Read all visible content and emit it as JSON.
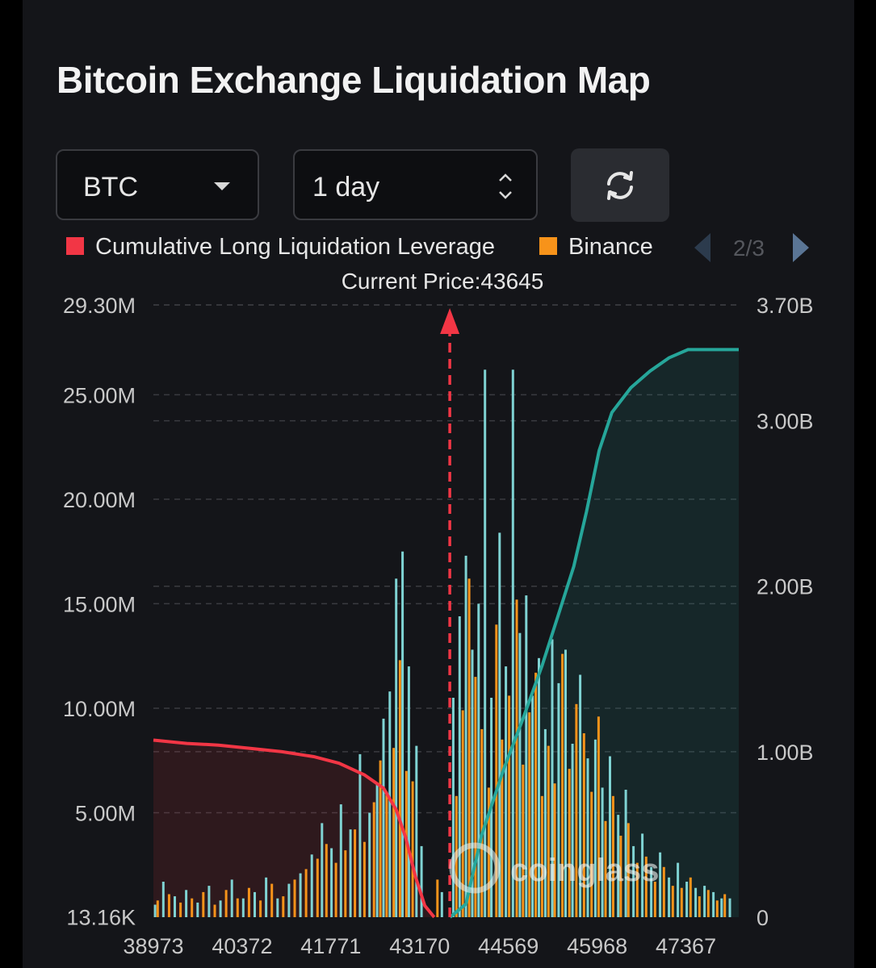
{
  "header": {
    "title": "Bitcoin Exchange Liquidation Map"
  },
  "controls": {
    "coin": "BTC",
    "timeframe": "1 day",
    "refresh_icon": "refresh-icon"
  },
  "legend": {
    "items": [
      {
        "label": "Cumulative Long Liquidation Leverage",
        "color": "#f23645"
      },
      {
        "label": "Binance",
        "color": "#f7931a"
      }
    ],
    "page": "2/3"
  },
  "colors": {
    "background": "#141519",
    "long_line": "#f23645",
    "short_line": "#26a69a",
    "binance_bar": "#f7931a",
    "other_bar": "#7fd3d3",
    "current_price_marker": "#f23645"
  },
  "chart_data": {
    "type": "bar",
    "current_price_label": "Current Price:43645",
    "current_price": 43645,
    "x_tick_labels": [
      "38973",
      "40372",
      "41771",
      "43170",
      "44569",
      "45968",
      "47367"
    ],
    "xlim": [
      38973,
      48200
    ],
    "y_left_tick_labels": [
      "29.30M",
      "25.00M",
      "20.00M",
      "15.00M",
      "10.00M",
      "5.00M",
      "13.16K"
    ],
    "y_left_ticks": [
      29.3,
      25,
      20,
      15,
      10,
      5,
      0.01316
    ],
    "y_left_unit": "M",
    "ylim_left": [
      0,
      29.3
    ],
    "y_right_tick_labels": [
      "3.70B",
      "3.00B",
      "2.00B",
      "1.00B",
      "0"
    ],
    "y_right_ticks": [
      3.7,
      3.0,
      2.0,
      1.0,
      0
    ],
    "y_right_unit": "B",
    "ylim_right": [
      0,
      3.7
    ],
    "grid": true,
    "legend_position": "top",
    "series": [
      {
        "name": "Cumulative Long Liquidation Leverage",
        "type": "area-line",
        "axis": "right",
        "points": [
          [
            38973,
            1.07
          ],
          [
            39500,
            1.05
          ],
          [
            40000,
            1.04
          ],
          [
            40500,
            1.02
          ],
          [
            41000,
            1.0
          ],
          [
            41500,
            0.97
          ],
          [
            41900,
            0.93
          ],
          [
            42300,
            0.86
          ],
          [
            42600,
            0.78
          ],
          [
            42800,
            0.65
          ],
          [
            42950,
            0.48
          ],
          [
            43100,
            0.25
          ],
          [
            43250,
            0.07
          ],
          [
            43400,
            0.0
          ]
        ]
      },
      {
        "name": "",
        "type": "area-line",
        "axis": "right",
        "points": [
          [
            43650,
            0.0
          ],
          [
            43900,
            0.08
          ],
          [
            44150,
            0.5
          ],
          [
            44500,
            0.9
          ],
          [
            44800,
            1.2
          ],
          [
            45100,
            1.52
          ],
          [
            45350,
            1.82
          ],
          [
            45600,
            2.12
          ],
          [
            45800,
            2.45
          ],
          [
            46000,
            2.82
          ],
          [
            46200,
            3.05
          ],
          [
            46500,
            3.2
          ],
          [
            46800,
            3.3
          ],
          [
            47100,
            3.38
          ],
          [
            47400,
            3.43
          ],
          [
            47500,
            3.43
          ]
        ]
      },
      {
        "name": "Binance",
        "type": "bar",
        "axis": "left",
        "points": [
          [
            39040,
            0.8
          ],
          [
            39220,
            1.1
          ],
          [
            39400,
            0.7
          ],
          [
            39580,
            0.9
          ],
          [
            39760,
            1.2
          ],
          [
            39940,
            0.6
          ],
          [
            40120,
            1.3
          ],
          [
            40300,
            0.9
          ],
          [
            40480,
            1.4
          ],
          [
            40660,
            0.8
          ],
          [
            40840,
            1.6
          ],
          [
            41020,
            1.0
          ],
          [
            41200,
            1.8
          ],
          [
            41380,
            2.3
          ],
          [
            41560,
            2.8
          ],
          [
            41700,
            3.5
          ],
          [
            41850,
            2.6
          ],
          [
            42000,
            3.2
          ],
          [
            42150,
            4.2
          ],
          [
            42300,
            3.6
          ],
          [
            42450,
            5.5
          ],
          [
            42550,
            7.5
          ],
          [
            42650,
            6.0
          ],
          [
            42760,
            8.1
          ],
          [
            42860,
            12.3
          ],
          [
            42960,
            7.0
          ],
          [
            43060,
            6.5
          ],
          [
            43450,
            1.8
          ],
          [
            43750,
            5.8
          ],
          [
            43850,
            9.9
          ],
          [
            43950,
            16.2
          ],
          [
            44050,
            11.5
          ],
          [
            44150,
            9.0
          ],
          [
            44260,
            6.2
          ],
          [
            44380,
            14.0
          ],
          [
            44470,
            8.5
          ],
          [
            44580,
            10.6
          ],
          [
            44700,
            15.2
          ],
          [
            44800,
            7.3
          ],
          [
            44900,
            9.8
          ],
          [
            45000,
            11.7
          ],
          [
            45100,
            5.8
          ],
          [
            45200,
            8.2
          ],
          [
            45300,
            6.4
          ],
          [
            45420,
            12.6
          ],
          [
            45530,
            7.1
          ],
          [
            45640,
            10.2
          ],
          [
            45760,
            8.8
          ],
          [
            45880,
            6.0
          ],
          [
            45990,
            9.6
          ],
          [
            46100,
            4.6
          ],
          [
            46220,
            5.8
          ],
          [
            46340,
            3.9
          ],
          [
            46460,
            4.5
          ],
          [
            46600,
            2.6
          ],
          [
            46740,
            2.9
          ],
          [
            46880,
            1.7
          ],
          [
            47020,
            2.4
          ],
          [
            47160,
            1.5
          ],
          [
            47300,
            1.4
          ],
          [
            47440,
            1.9
          ],
          [
            47580,
            1.0
          ],
          [
            47720,
            1.3
          ],
          [
            47860,
            0.8
          ],
          [
            47980,
            1.1
          ]
        ]
      },
      {
        "name": "",
        "type": "bar",
        "axis": "left",
        "points": [
          [
            39000,
            0.6
          ],
          [
            39130,
            1.7
          ],
          [
            39310,
            1.0
          ],
          [
            39490,
            1.3
          ],
          [
            39670,
            0.7
          ],
          [
            39850,
            1.5
          ],
          [
            40030,
            0.8
          ],
          [
            40210,
            1.8
          ],
          [
            40390,
            0.9
          ],
          [
            40570,
            1.2
          ],
          [
            40750,
            1.9
          ],
          [
            40930,
            0.9
          ],
          [
            41110,
            1.6
          ],
          [
            41290,
            2.1
          ],
          [
            41470,
            3.0
          ],
          [
            41630,
            4.5
          ],
          [
            41780,
            3.3
          ],
          [
            41930,
            5.4
          ],
          [
            42080,
            4.2
          ],
          [
            42230,
            7.8
          ],
          [
            42380,
            5.0
          ],
          [
            42500,
            6.4
          ],
          [
            42600,
            9.5
          ],
          [
            42700,
            10.8
          ],
          [
            42800,
            16.2
          ],
          [
            42900,
            17.5
          ],
          [
            43000,
            12.0
          ],
          [
            43120,
            8.2
          ],
          [
            43200,
            3.4
          ],
          [
            43520,
            1.2
          ],
          [
            43700,
            10.5
          ],
          [
            43800,
            14.4
          ],
          [
            43900,
            17.3
          ],
          [
            44000,
            12.8
          ],
          [
            44100,
            15.0
          ],
          [
            44200,
            26.2
          ],
          [
            44300,
            10.5
          ],
          [
            44430,
            18.4
          ],
          [
            44530,
            12.0
          ],
          [
            44640,
            26.2
          ],
          [
            44750,
            13.6
          ],
          [
            44850,
            15.4
          ],
          [
            44950,
            10.6
          ],
          [
            45050,
            12.4
          ],
          [
            45150,
            9.0
          ],
          [
            45260,
            13.3
          ],
          [
            45360,
            11.2
          ],
          [
            45470,
            12.8
          ],
          [
            45580,
            8.3
          ],
          [
            45700,
            11.6
          ],
          [
            45820,
            7.6
          ],
          [
            45940,
            8.5
          ],
          [
            46050,
            6.2
          ],
          [
            46170,
            7.7
          ],
          [
            46300,
            4.9
          ],
          [
            46420,
            6.1
          ],
          [
            46540,
            3.4
          ],
          [
            46680,
            4.0
          ],
          [
            46820,
            2.4
          ],
          [
            46960,
            3.1
          ],
          [
            47100,
            1.9
          ],
          [
            47240,
            2.6
          ],
          [
            47380,
            1.7
          ],
          [
            47520,
            1.4
          ],
          [
            47660,
            1.5
          ],
          [
            47800,
            1.2
          ],
          [
            47930,
            0.9
          ],
          [
            48060,
            0.9
          ]
        ]
      }
    ]
  }
}
